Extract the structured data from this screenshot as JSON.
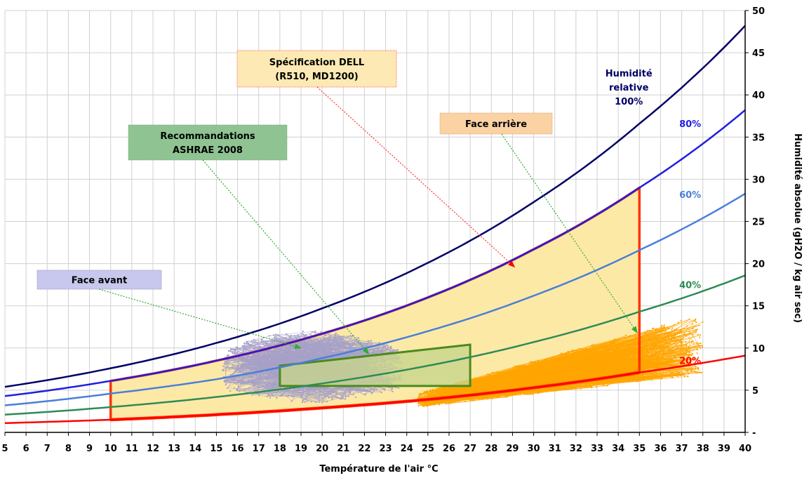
{
  "chart_data": {
    "type": "line",
    "xlabel": "Température de l'air °C",
    "ylabel": "Humidité absolue (gH2O / kg air sec)",
    "xlim": [
      5,
      40
    ],
    "ylim": [
      0,
      50
    ],
    "x_ticks": [
      5,
      6,
      7,
      8,
      9,
      10,
      11,
      12,
      13,
      14,
      15,
      16,
      17,
      18,
      19,
      20,
      21,
      22,
      23,
      24,
      25,
      26,
      27,
      28,
      29,
      30,
      31,
      32,
      33,
      34,
      35,
      36,
      37,
      38,
      39,
      40
    ],
    "y_ticks": [
      {
        "value": 0,
        "label": "-"
      },
      {
        "value": 5,
        "label": "5"
      },
      {
        "value": 10,
        "label": "10"
      },
      {
        "value": 15,
        "label": "15"
      },
      {
        "value": 20,
        "label": "20"
      },
      {
        "value": 25,
        "label": "25"
      },
      {
        "value": 30,
        "label": "30"
      },
      {
        "value": 35,
        "label": "35"
      },
      {
        "value": 40,
        "label": "40"
      },
      {
        "value": 45,
        "label": "45"
      },
      {
        "value": 50,
        "label": "50"
      }
    ],
    "grid": true,
    "curve_x": [
      5,
      10,
      15,
      20,
      25,
      30,
      35,
      40
    ],
    "series": [
      {
        "name": "Humidité relative 100%",
        "label_lines": [
          "Humidité",
          "relative",
          "100%"
        ],
        "color": "#000066",
        "y": [
          5.4,
          7.6,
          10.6,
          14.7,
          20.1,
          27.3,
          36.6,
          48.2
        ]
      },
      {
        "name": "80%",
        "label_lines": [
          "80%"
        ],
        "color": "#1f1fdd",
        "y": [
          4.3,
          6.1,
          8.5,
          11.7,
          16.0,
          21.7,
          29.0,
          38.2
        ]
      },
      {
        "name": "60%",
        "label_lines": [
          "60%"
        ],
        "color": "#4a7fd8",
        "y": [
          3.2,
          4.6,
          6.3,
          8.8,
          12.0,
          16.2,
          21.6,
          28.3
        ]
      },
      {
        "name": "40%",
        "label_lines": [
          "40%"
        ],
        "color": "#2e8b57",
        "y": [
          2.1,
          3.0,
          4.2,
          5.8,
          7.9,
          10.7,
          14.3,
          18.6
        ]
      },
      {
        "name": "20%",
        "label_lines": [
          "20%"
        ],
        "color": "#ff0000",
        "y": [
          1.1,
          1.5,
          2.1,
          2.9,
          3.9,
          5.3,
          7.1,
          9.1
        ]
      }
    ],
    "regions": [
      {
        "name": "DELL",
        "color": "#ff3300",
        "fill": "#fde9a6",
        "x": [
          10,
          35
        ],
        "rh_upper": "80%",
        "rh_lower": "20%"
      },
      {
        "name": "ASHRAE",
        "color": "#4a8a1c",
        "fill": "#c7d58c",
        "polygon": [
          [
            18,
            5.5
          ],
          [
            18,
            7.9
          ],
          [
            27,
            10.4
          ],
          [
            27,
            5.5
          ]
        ]
      }
    ],
    "scatter_regions": [
      {
        "name": "Face avant",
        "color": "#a6a0c8",
        "x_range": [
          15.3,
          23.8
        ],
        "y_range": [
          3.3,
          12.0
        ]
      },
      {
        "name": "Face arrière",
        "color": "#ffa500",
        "x_range": [
          24.5,
          38.0
        ],
        "y_range": [
          3.0,
          13.5
        ]
      }
    ],
    "annotations": [
      {
        "id": "dell",
        "lines": [
          "Spécification DELL",
          "(R510, MD1200)"
        ],
        "box_fill": "#fde9b4",
        "border": "#ff6666",
        "arrow_color": "#ff3333",
        "arrow_to": [
          29.1,
          19.6
        ]
      },
      {
        "id": "ashrae",
        "lines": [
          "Recommandations",
          "ASHRAE 2008"
        ],
        "box_fill": "#8fc492",
        "border": "#7aaa7a",
        "arrow_color": "#33aa33",
        "arrow_to": [
          22.2,
          9.3
        ]
      },
      {
        "id": "avant",
        "lines": [
          "Face avant"
        ],
        "box_fill": "#c8c8ee",
        "border": "#8f8fbf",
        "arrow_color": "#33aa33",
        "arrow_to": [
          19.0,
          10.0
        ]
      },
      {
        "id": "arriere",
        "lines": [
          "Face arrière"
        ],
        "box_fill": "#fbd2a4",
        "border": "#d8a870",
        "arrow_color": "#33aa33",
        "arrow_to": [
          34.9,
          11.8
        ]
      }
    ]
  }
}
